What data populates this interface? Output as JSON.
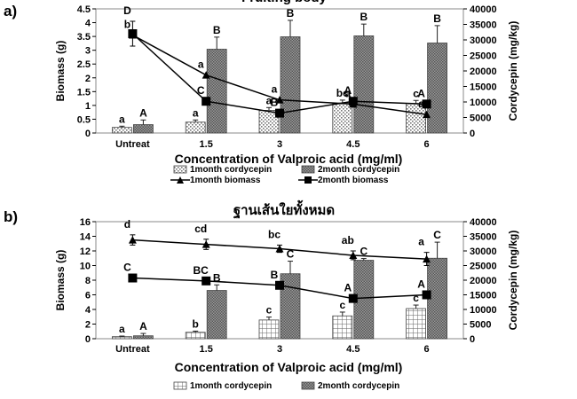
{
  "chart_data": [
    {
      "panel_label": "a)",
      "title": "Fruiting body",
      "type": "bar",
      "categories": [
        "Untreat",
        "1.5",
        "3",
        "4.5",
        "6"
      ],
      "xlabel": "Concentration of Valproic acid (mg/ml)",
      "ylabel": "Biomass (g)",
      "ylabel_right": "Cordycepin (mg/kg)",
      "ylim": [
        0,
        4.5
      ],
      "yticks": [
        "0",
        "0.5",
        "1",
        "1.5",
        "2",
        "2.5",
        "3",
        "3.5",
        "4",
        "4.5"
      ],
      "ylim_right": [
        0,
        40000
      ],
      "yticks_right": [
        "0",
        "5000",
        "10000",
        "15000",
        "20000",
        "25000",
        "30000",
        "35000",
        "40000"
      ],
      "series": [
        {
          "name": "1month cordycepin",
          "kind": "bar",
          "axis": "right",
          "pattern": "dots",
          "values": [
            1800,
            3500,
            7300,
            9500,
            9500
          ],
          "errors": [
            400,
            700,
            900,
            1100,
            1000
          ],
          "letters": [
            "a",
            "a",
            "a",
            "bc",
            "c"
          ]
        },
        {
          "name": "2month cordycepin",
          "kind": "bar",
          "axis": "right",
          "pattern": "dense",
          "values": [
            2700,
            27000,
            31000,
            31300,
            29000
          ],
          "errors": [
            1500,
            3900,
            5300,
            3800,
            5600
          ],
          "letters": [
            "A",
            "B",
            "B",
            "B",
            "B"
          ]
        },
        {
          "name": "1month biomass",
          "kind": "line",
          "axis": "left",
          "marker": "triangle",
          "values": [
            3.55,
            2.1,
            1.2,
            1.05,
            0.67
          ],
          "letters": [
            "b",
            "a",
            "a",
            "a",
            "a"
          ]
        },
        {
          "name": "2month biomass",
          "kind": "line",
          "axis": "left",
          "marker": "square",
          "values": [
            3.6,
            1.15,
            0.72,
            1.15,
            1.05
          ],
          "errors": [
            0.45,
            0,
            0,
            0,
            0
          ],
          "letters": [
            "D",
            "C",
            "B",
            "A",
            "A"
          ]
        }
      ],
      "legend_position": "bottom"
    },
    {
      "panel_label": "b)",
      "title": "ฐานเส้นใยทั้งหมด",
      "type": "bar",
      "categories": [
        "Untreat",
        "1.5",
        "3",
        "4.5",
        "6"
      ],
      "xlabel": "Concentration of Valproic acid (mg/ml)",
      "ylabel": "Biomass (g)",
      "ylabel_right": "Cordycepin (mg/kg)",
      "ylim": [
        0,
        16
      ],
      "yticks": [
        "0",
        "2",
        "4",
        "6",
        "8",
        "10",
        "12",
        "14",
        "16"
      ],
      "ylim_right": [
        0,
        40000
      ],
      "yticks_right": [
        "0",
        "5000",
        "10000",
        "15000",
        "20000",
        "25000",
        "30000",
        "35000",
        "40000"
      ],
      "series": [
        {
          "name": "1month cordycepin",
          "kind": "bar",
          "axis": "right",
          "pattern": "grid",
          "values": [
            700,
            2200,
            6400,
            7800,
            10300
          ],
          "errors": [
            200,
            400,
            1000,
            1300,
            1200
          ],
          "letters": [
            "a",
            "b",
            "c",
            "c",
            "c"
          ]
        },
        {
          "name": "2month cordycepin",
          "kind": "bar",
          "axis": "right",
          "pattern": "dense",
          "values": [
            1000,
            16500,
            22200,
            26800,
            27500
          ],
          "errors": [
            800,
            1900,
            4300,
            600,
            5500
          ],
          "letters": [
            "A",
            "B",
            "C",
            "C",
            "C"
          ]
        },
        {
          "name": "1month biomass",
          "kind": "line",
          "axis": "left",
          "marker": "triangle",
          "values": [
            13.5,
            12.9,
            12.3,
            11.4,
            10.9
          ],
          "errors": [
            0.7,
            0.7,
            0.5,
            0.6,
            0.9
          ],
          "letters": [
            "d",
            "cd",
            "bc",
            "ab",
            "a"
          ]
        },
        {
          "name": "2month biomass",
          "kind": "line",
          "axis": "left",
          "marker": "square",
          "values": [
            8.3,
            7.9,
            7.3,
            5.5,
            6.0
          ],
          "letters": [
            "C",
            "BC",
            "B",
            "A",
            "A"
          ]
        }
      ],
      "legend_position": "bottom"
    }
  ]
}
